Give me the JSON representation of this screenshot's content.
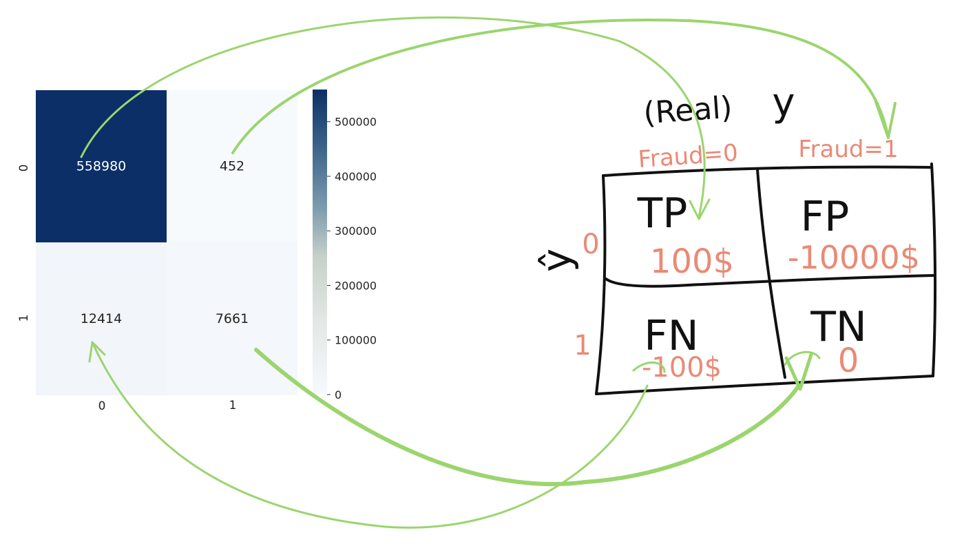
{
  "chart_data": {
    "type": "heatmap",
    "row_labels": [
      "0",
      "1"
    ],
    "col_labels": [
      "0",
      "1"
    ],
    "values": [
      [
        558980,
        452
      ],
      [
        12414,
        7661
      ]
    ],
    "colorbar": {
      "range": [
        0,
        558980
      ],
      "ticks": [
        "0",
        "100000",
        "200000",
        "300000",
        "400000",
        "500000"
      ],
      "colormap": "white-to-navy (Blues-like)",
      "colors": {
        "low": "#f7fafd",
        "mid": "#c8d2cc",
        "high": "#0b2f66"
      }
    }
  },
  "sketch": {
    "title_real": "(Real)",
    "y_label": "y",
    "col_headers": [
      "Fraud=0",
      "Fraud=1"
    ],
    "yhat_label": "ŷ",
    "row_labels": [
      "0",
      "1"
    ],
    "cells": [
      {
        "label": "TP",
        "value": "100$"
      },
      {
        "label": "FP",
        "value": "-10000$"
      },
      {
        "label": "FN",
        "value": "-100$"
      },
      {
        "label": "TN",
        "value": "0"
      }
    ],
    "colors": {
      "ink": "#111111",
      "salmon": "#e98a76",
      "arrow": "#9bd56e"
    }
  }
}
